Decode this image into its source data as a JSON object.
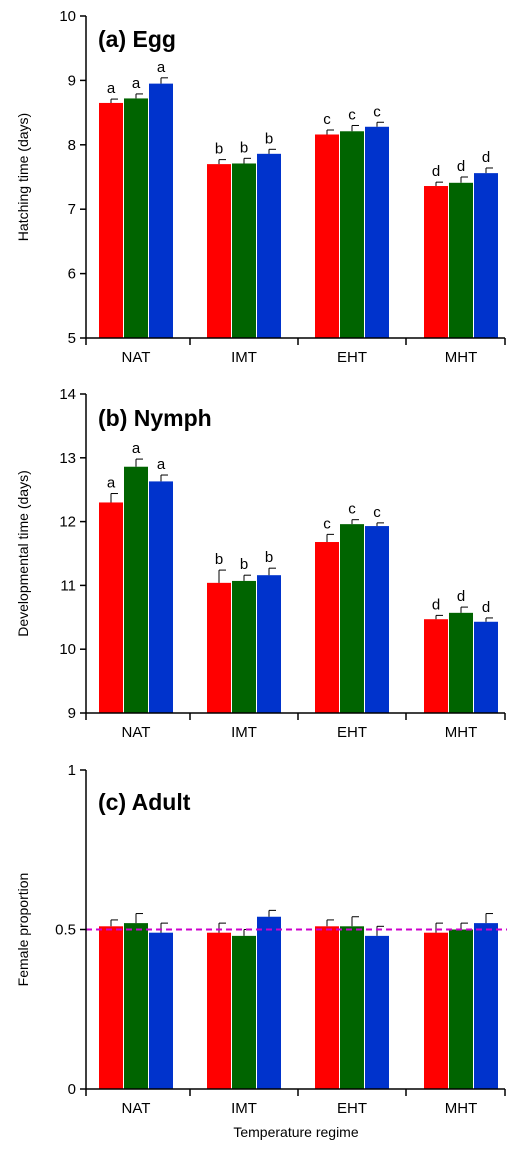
{
  "chart_data": [
    {
      "type": "bar",
      "title": "(a) Egg",
      "ylabel": "Hatching  time (days)",
      "xlabel": "",
      "ylim": [
        5,
        10
      ],
      "yticks": [
        5,
        6,
        7,
        8,
        9,
        10
      ],
      "categories": [
        "NAT",
        "IMT",
        "EHT",
        "MHT"
      ],
      "series": [
        {
          "color": "#ff0000",
          "values": [
            8.65,
            7.7,
            8.16,
            7.36
          ],
          "errors": [
            0.06,
            0.07,
            0.07,
            0.06
          ]
        },
        {
          "color": "#006400",
          "values": [
            8.72,
            7.71,
            8.21,
            7.41
          ],
          "errors": [
            0.07,
            0.08,
            0.09,
            0.09
          ]
        },
        {
          "color": "#0033cc",
          "values": [
            8.95,
            7.86,
            8.28,
            7.56
          ],
          "errors": [
            0.09,
            0.07,
            0.07,
            0.08
          ]
        }
      ],
      "letters": [
        "a",
        "b",
        "c",
        "d"
      ]
    },
    {
      "type": "bar",
      "title": "(b) Nymph",
      "ylabel": "Developmental time (days)",
      "xlabel": "",
      "ylim": [
        9,
        14
      ],
      "yticks": [
        9,
        10,
        11,
        12,
        13,
        14
      ],
      "categories": [
        "NAT",
        "IMT",
        "EHT",
        "MHT"
      ],
      "series": [
        {
          "color": "#ff0000",
          "values": [
            12.3,
            11.04,
            11.68,
            10.47
          ],
          "errors": [
            0.14,
            0.2,
            0.12,
            0.06
          ]
        },
        {
          "color": "#006400",
          "values": [
            12.86,
            11.07,
            11.96,
            10.57
          ],
          "errors": [
            0.12,
            0.09,
            0.07,
            0.09
          ]
        },
        {
          "color": "#0033cc",
          "values": [
            12.63,
            11.16,
            11.93,
            10.43
          ],
          "errors": [
            0.1,
            0.11,
            0.05,
            0.06
          ]
        }
      ],
      "letters": [
        "a",
        "b",
        "c",
        "d"
      ]
    },
    {
      "type": "bar",
      "title": "(c) Adult",
      "ylabel": "Female proportion",
      "xlabel": "Temperature regime",
      "ylim": [
        0,
        1
      ],
      "yticks": [
        0,
        0.5,
        1
      ],
      "categories": [
        "NAT",
        "IMT",
        "EHT",
        "MHT"
      ],
      "series": [
        {
          "color": "#ff0000",
          "values": [
            0.51,
            0.49,
            0.51,
            0.49
          ],
          "errors": [
            0.02,
            0.03,
            0.02,
            0.03
          ]
        },
        {
          "color": "#006400",
          "values": [
            0.52,
            0.48,
            0.51,
            0.5
          ],
          "errors": [
            0.03,
            0.02,
            0.03,
            0.02
          ]
        },
        {
          "color": "#0033cc",
          "values": [
            0.49,
            0.54,
            0.48,
            0.52
          ],
          "errors": [
            0.03,
            0.02,
            0.03,
            0.03
          ]
        }
      ],
      "reference_line": {
        "value": 0.5,
        "color": "#cc00cc",
        "style": "dashed"
      }
    }
  ]
}
